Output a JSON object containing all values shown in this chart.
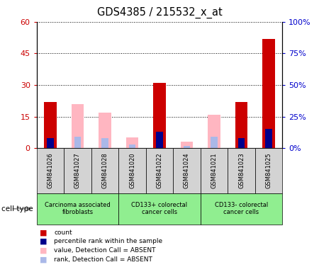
{
  "title": "GDS4385 / 215532_x_at",
  "samples": [
    "GSM841026",
    "GSM841027",
    "GSM841028",
    "GSM841020",
    "GSM841022",
    "GSM841024",
    "GSM841021",
    "GSM841023",
    "GSM841025"
  ],
  "count_values": [
    22,
    0,
    0,
    0,
    31,
    0,
    0,
    22,
    52
  ],
  "rank_values": [
    8,
    0,
    0,
    0,
    13,
    0,
    0,
    8,
    15
  ],
  "absent_value_values": [
    0,
    21,
    17,
    5,
    0,
    3,
    16,
    0,
    0
  ],
  "absent_rank_values": [
    0,
    9,
    8,
    3,
    0,
    2,
    9,
    0,
    0
  ],
  "left_yticks": [
    0,
    15,
    30,
    45,
    60
  ],
  "right_yticks": [
    0,
    25,
    50,
    75,
    100
  ],
  "left_ylim": [
    0,
    60
  ],
  "right_ylim": [
    0,
    100
  ],
  "left_color": "#cc0000",
  "right_color": "#0000cc",
  "count_color": "#cc0000",
  "rank_color": "#00008b",
  "absent_value_color": "#ffb6c1",
  "absent_rank_color": "#aab8e8",
  "bar_width": 0.45,
  "grid_color": "#000000",
  "group_defs": [
    {
      "label": "Carcinoma associated\nfibroblasts",
      "start": 0,
      "end": 2
    },
    {
      "label": "CD133+ colorectal\ncancer cells",
      "start": 3,
      "end": 5
    },
    {
      "label": "CD133- colorectal\ncancer cells",
      "start": 6,
      "end": 8
    }
  ],
  "legend_items": [
    {
      "color": "#cc0000",
      "label": "count"
    },
    {
      "color": "#00008b",
      "label": "percentile rank within the sample"
    },
    {
      "color": "#ffb6c1",
      "label": "value, Detection Call = ABSENT"
    },
    {
      "color": "#aab8e8",
      "label": "rank, Detection Call = ABSENT"
    }
  ]
}
